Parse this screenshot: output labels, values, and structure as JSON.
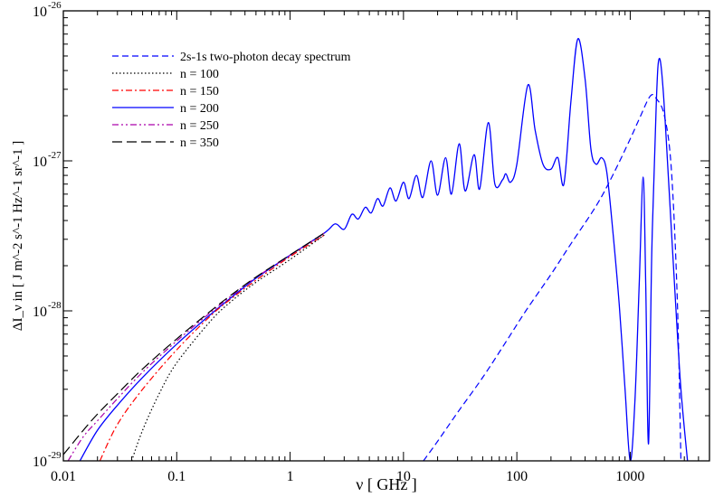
{
  "chart_data": {
    "type": "line",
    "title": "",
    "xlabel": "ν [ GHz ]",
    "ylabel": "ΔI_ν in [ J m^-2 s^-1 Hz^-1 sr^-1 ]",
    "x_scale": "log",
    "y_scale": "log",
    "xlim": [
      0.01,
      5000
    ],
    "ylim": [
      1e-29,
      1e-26
    ],
    "grid": false,
    "legend_position": "top-left",
    "x_tick_labels": [
      "0.01",
      "0.1",
      "1",
      "10",
      "100",
      "1000"
    ],
    "x_tick_values": [
      0.01,
      0.1,
      1,
      10,
      100,
      1000
    ],
    "y_tick_values": [
      1e-29,
      1e-28,
      1e-27,
      1e-26
    ],
    "y_tick_labels": [
      {
        "base": "10",
        "exp": "-29"
      },
      {
        "base": "10",
        "exp": "-28"
      },
      {
        "base": "10",
        "exp": "-27"
      },
      {
        "base": "10",
        "exp": "-26"
      }
    ],
    "series": [
      {
        "name": "2s-1s two-photon decay spectrum",
        "color": "#0000ff",
        "dash": "dashed",
        "points": [
          [
            15,
            1e-29
          ],
          [
            20,
            1.35e-29
          ],
          [
            30,
            2.1e-29
          ],
          [
            50,
            3.6e-29
          ],
          [
            80,
            6.2e-29
          ],
          [
            120,
            1e-28
          ],
          [
            200,
            1.75e-28
          ],
          [
            300,
            2.8e-28
          ],
          [
            500,
            5e-28
          ],
          [
            700,
            8e-28
          ],
          [
            1000,
            1.4e-27
          ],
          [
            1200,
            1.9e-27
          ],
          [
            1500,
            2.7e-27
          ],
          [
            1700,
            2.6e-27
          ],
          [
            2000,
            2e-27
          ],
          [
            2300,
            9e-28
          ],
          [
            2600,
            1.2e-28
          ],
          [
            2800,
            1e-29
          ]
        ]
      },
      {
        "name": "n = 100",
        "color": "#000000",
        "dash": "dotted",
        "points": [
          [
            0.04,
            1e-29
          ],
          [
            0.05,
            1.6e-29
          ],
          [
            0.07,
            2.8e-29
          ],
          [
            0.1,
            4.5e-29
          ],
          [
            0.2,
            8.6e-29
          ],
          [
            0.3,
            1.15e-28
          ],
          [
            0.5,
            1.55e-28
          ],
          [
            1,
            2.2e-28
          ],
          [
            2,
            3.2e-28
          ]
        ]
      },
      {
        "name": "n = 150",
        "color": "#ff0000",
        "dash": "dashdot",
        "points": [
          [
            0.021,
            1e-29
          ],
          [
            0.03,
            1.75e-29
          ],
          [
            0.05,
            3e-29
          ],
          [
            0.1,
            5.5e-29
          ],
          [
            0.2,
            9.3e-29
          ],
          [
            0.3,
            1.2e-28
          ],
          [
            0.5,
            1.6e-28
          ],
          [
            1,
            2.3e-28
          ],
          [
            2,
            3.2e-28
          ]
        ]
      },
      {
        "name": "n = 200",
        "color": "#0000ff",
        "dash": "solid",
        "points": [
          [
            0.014,
            1e-29
          ],
          [
            0.02,
            1.6e-29
          ],
          [
            0.03,
            2.35e-29
          ],
          [
            0.05,
            3.6e-29
          ],
          [
            0.1,
            6e-29
          ],
          [
            0.2,
            9.5e-29
          ],
          [
            0.3,
            1.22e-28
          ],
          [
            0.5,
            1.65e-28
          ],
          [
            1,
            2.35e-28
          ],
          [
            2,
            3.3e-28
          ],
          [
            2.5,
            3.8e-28
          ],
          [
            3,
            3.5e-28
          ],
          [
            3.5,
            4.4e-28
          ],
          [
            4,
            4.1e-28
          ],
          [
            4.6,
            4.9e-28
          ],
          [
            5.2,
            4.5e-28
          ],
          [
            5.9,
            5.6e-28
          ],
          [
            6.6,
            5e-28
          ],
          [
            7.6,
            6.6e-28
          ],
          [
            8.6,
            5.4e-28
          ],
          [
            10,
            7.2e-28
          ],
          [
            11.2,
            5.6e-28
          ],
          [
            13,
            8e-28
          ],
          [
            14.8,
            5.7e-28
          ],
          [
            17.5,
            1e-27
          ],
          [
            20,
            5.9e-28
          ],
          [
            23.5,
            1.05e-27
          ],
          [
            26.5,
            6e-28
          ],
          [
            31,
            1.3e-27
          ],
          [
            35,
            6.3e-28
          ],
          [
            42,
            1.1e-27
          ],
          [
            47,
            6.5e-28
          ],
          [
            56,
            1.8e-27
          ],
          [
            64,
            7e-28
          ],
          [
            75,
            7.5e-28
          ],
          [
            80,
            8.2e-28
          ],
          [
            88,
            7.2e-28
          ],
          [
            100,
            9.5e-28
          ],
          [
            125,
            3.2e-27
          ],
          [
            145,
            1.6e-27
          ],
          [
            170,
            9.5e-28
          ],
          [
            200,
            8.8e-28
          ],
          [
            230,
            1.05e-27
          ],
          [
            260,
            7e-28
          ],
          [
            300,
            2.5e-27
          ],
          [
            345,
            6.5e-27
          ],
          [
            400,
            3.5e-27
          ],
          [
            450,
            1.2e-27
          ],
          [
            500,
            9.5e-28
          ],
          [
            560,
            1.05e-27
          ],
          [
            620,
            8.5e-28
          ],
          [
            700,
            3.5e-28
          ],
          [
            800,
            1.1e-28
          ],
          [
            900,
            3e-29
          ],
          [
            1000,
            1e-29
          ],
          [
            1100,
            2.5e-29
          ],
          [
            1200,
            1.5e-28
          ],
          [
            1300,
            7.8e-28
          ],
          [
            1370,
            1.5e-28
          ],
          [
            1450,
            1.3e-29
          ],
          [
            1550,
            2.5e-28
          ],
          [
            1700,
            2.5e-27
          ],
          [
            1800,
            4.8e-27
          ],
          [
            1950,
            3e-27
          ],
          [
            2200,
            6.5e-28
          ],
          [
            2500,
            1.2e-28
          ],
          [
            2800,
            3e-29
          ],
          [
            3200,
            1e-29
          ]
        ]
      },
      {
        "name": "n = 250",
        "color": "#aa00aa",
        "dash": "dashdotdot",
        "points": [
          [
            0.011,
            1e-29
          ],
          [
            0.015,
            1.45e-29
          ],
          [
            0.02,
            1.85e-29
          ],
          [
            0.03,
            2.6e-29
          ],
          [
            0.05,
            3.9e-29
          ],
          [
            0.1,
            6.3e-29
          ],
          [
            0.2,
            9.8e-29
          ],
          [
            0.3,
            1.25e-28
          ],
          [
            0.5,
            1.67e-28
          ],
          [
            1,
            2.35e-28
          ],
          [
            2,
            3.3e-28
          ]
        ]
      },
      {
        "name": "n = 350",
        "color": "#000000",
        "dash": "longdash",
        "points": [
          [
            0.01,
            1.1e-29
          ],
          [
            0.015,
            1.6e-29
          ],
          [
            0.02,
            2.05e-29
          ],
          [
            0.03,
            2.8e-29
          ],
          [
            0.05,
            4.1e-29
          ],
          [
            0.1,
            6.5e-29
          ],
          [
            0.2,
            1e-28
          ],
          [
            0.3,
            1.27e-28
          ],
          [
            0.5,
            1.68e-28
          ],
          [
            1,
            2.36e-28
          ],
          [
            2,
            3.3e-28
          ]
        ]
      }
    ]
  }
}
